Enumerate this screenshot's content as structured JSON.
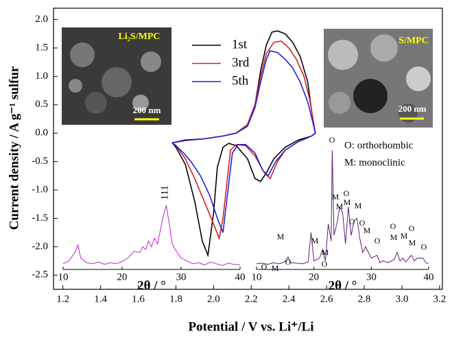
{
  "chart_data": [
    {
      "type": "line",
      "xlabel": "Potential / V vs. Li⁺/Li",
      "ylabel": "Current density / A g⁻¹ sulfur",
      "xlim": [
        1.15,
        3.215
      ],
      "ylim": [
        -2.75,
        2.2
      ],
      "xticks": [
        1.2,
        1.4,
        1.6,
        1.8,
        {
          "value": 2,
          "label": "2.0"
        },
        2.2,
        2.4,
        2.6,
        2.8,
        {
          "value": 3,
          "label": "3.0"
        },
        3.2
      ],
      "yticks": [
        {
          "value": 2,
          "label": "2.0"
        },
        1.5,
        {
          "value": 1,
          "label": "1.0"
        },
        0.5,
        {
          "value": 0,
          "label": "0.0"
        },
        -0.5,
        {
          "value": -1,
          "label": "-1.0"
        },
        -1.5,
        {
          "value": -2,
          "label": "-2.0"
        },
        -2.5
      ],
      "series": [
        {
          "name": "1st",
          "color": "#000000",
          "x": [
            1.78,
            1.85,
            1.95,
            2.05,
            2.12,
            2.18,
            2.22,
            2.25,
            2.28,
            2.31,
            2.34,
            2.38,
            2.42,
            2.46,
            2.5,
            2.52,
            2.54,
            2.52,
            2.45,
            2.38,
            2.32,
            2.28,
            2.25,
            2.22,
            2.18,
            2.12,
            2.08,
            2.05,
            2.02,
            2.0,
            1.97,
            1.94,
            1.9,
            1.85,
            1.8,
            1.78
          ],
          "values": [
            -0.17,
            -0.12,
            -0.1,
            -0.05,
            0.0,
            0.15,
            0.5,
            1.1,
            1.55,
            1.78,
            1.8,
            1.75,
            1.6,
            1.35,
            0.9,
            0.4,
            0.0,
            -0.05,
            -0.12,
            -0.25,
            -0.45,
            -0.7,
            -0.85,
            -0.8,
            -0.45,
            -0.22,
            -0.18,
            -0.25,
            -0.6,
            -1.4,
            -2.15,
            -1.9,
            -1.2,
            -0.55,
            -0.25,
            -0.17
          ]
        },
        {
          "name": "3rd",
          "color": "#d42020",
          "x": [
            1.78,
            1.85,
            1.95,
            2.05,
            2.12,
            2.18,
            2.22,
            2.25,
            2.28,
            2.32,
            2.36,
            2.4,
            2.44,
            2.48,
            2.51,
            2.53,
            2.54,
            2.52,
            2.45,
            2.38,
            2.34,
            2.3,
            2.27,
            2.22,
            2.17,
            2.12,
            2.09,
            2.07,
            2.05,
            2.03,
            2.0,
            1.95,
            1.9,
            1.85,
            1.8,
            1.78
          ],
          "values": [
            -0.17,
            -0.13,
            -0.1,
            -0.05,
            0.0,
            0.15,
            0.5,
            1.0,
            1.4,
            1.6,
            1.62,
            1.5,
            1.3,
            1.0,
            0.6,
            0.2,
            0.0,
            -0.05,
            -0.15,
            -0.3,
            -0.5,
            -0.8,
            -0.7,
            -0.4,
            -0.22,
            -0.2,
            -0.3,
            -0.9,
            -1.5,
            -1.85,
            -1.6,
            -1.2,
            -0.8,
            -0.45,
            -0.22,
            -0.17
          ]
        },
        {
          "name": "5th",
          "color": "#2020d8",
          "x": [
            1.78,
            1.85,
            1.95,
            2.05,
            2.12,
            2.18,
            2.22,
            2.25,
            2.28,
            2.3,
            2.34,
            2.38,
            2.42,
            2.46,
            2.5,
            2.53,
            2.54,
            2.52,
            2.45,
            2.38,
            2.33,
            2.29,
            2.26,
            2.22,
            2.17,
            2.13,
            2.1,
            2.08,
            2.05,
            2.02,
            1.98,
            1.93,
            1.88,
            1.84,
            1.8,
            1.78
          ],
          "values": [
            -0.17,
            -0.13,
            -0.1,
            -0.05,
            0.0,
            0.12,
            0.45,
            0.9,
            1.3,
            1.45,
            1.42,
            1.3,
            1.15,
            0.9,
            0.55,
            0.15,
            0.0,
            -0.05,
            -0.15,
            -0.3,
            -0.5,
            -0.75,
            -0.65,
            -0.35,
            -0.2,
            -0.2,
            -0.35,
            -0.9,
            -1.75,
            -1.5,
            -1.1,
            -0.75,
            -0.5,
            -0.35,
            -0.22,
            -0.17
          ]
        }
      ],
      "legend": "upper center",
      "annotations": [
        "O: orthorhombic",
        "M: monoclinic"
      ],
      "images": [
        {
          "label": "Li₂S/MPC",
          "scale": "200 nm"
        },
        {
          "label": "S/MPC",
          "scale": "200 nm"
        }
      ]
    },
    {
      "type": "line",
      "xlabel": "2θ / °",
      "xlim": [
        10,
        40
      ],
      "xticks": [
        10,
        20,
        30,
        40
      ],
      "color": "#c020d8",
      "x": [
        10,
        11,
        12,
        12.5,
        13,
        14,
        15,
        16,
        17,
        18,
        19,
        20,
        21,
        22,
        23,
        23.5,
        24,
        24.5,
        25,
        25.5,
        26,
        26.5,
        27,
        27.5,
        28,
        28.5,
        29,
        30,
        31,
        32,
        33,
        34,
        35,
        36,
        37,
        38,
        39,
        40
      ],
      "values": [
        -2.3,
        -2.25,
        -2.1,
        -1.97,
        -2.2,
        -2.28,
        -2.3,
        -2.27,
        -2.31,
        -2.28,
        -2.3,
        -2.26,
        -2.2,
        -2.08,
        -2.1,
        -2.0,
        -2.05,
        -1.9,
        -2.0,
        -1.85,
        -1.95,
        -1.7,
        -1.45,
        -1.27,
        -1.6,
        -1.95,
        -2.05,
        -2.2,
        -2.25,
        -2.3,
        -2.28,
        -2.32,
        -2.27,
        -2.3,
        -2.33,
        -2.29,
        -2.31,
        -2.32
      ],
      "annotations": [
        "111"
      ]
    },
    {
      "type": "line",
      "xlabel": "2θ / °",
      "xlim": [
        10,
        40
      ],
      "xticks": [
        10,
        20,
        30,
        40
      ],
      "color": "#5a1a78",
      "x": [
        10,
        11,
        12,
        13,
        14,
        15,
        15.5,
        16,
        17,
        18,
        19,
        19.5,
        20,
        21,
        21.5,
        22,
        22.5,
        23,
        23.2,
        23.5,
        24,
        24.5,
        25,
        25.5,
        26,
        26.5,
        27,
        27.5,
        28,
        28.5,
        29,
        30,
        31,
        31.5,
        32,
        33,
        34,
        34.5,
        35,
        35.5,
        36,
        37,
        37.5,
        38,
        39,
        39.5,
        40
      ],
      "values": [
        -2.3,
        -2.29,
        -2.31,
        -2.28,
        -2.3,
        -2.26,
        -2.18,
        -2.28,
        -2.29,
        -2.3,
        -2.27,
        -1.75,
        -2.25,
        -2.2,
        -2.05,
        -2.25,
        -1.6,
        -1.9,
        -0.3,
        -1.8,
        -1.6,
        -1.3,
        -1.4,
        -1.95,
        -1.3,
        -1.8,
        -1.55,
        -1.5,
        -1.85,
        -2.1,
        -2.0,
        -2.2,
        -2.15,
        -2.28,
        -2.25,
        -2.28,
        -2.22,
        -2.1,
        -2.25,
        -2.2,
        -2.27,
        -2.15,
        -2.25,
        -2.2,
        -2.2,
        -2.28,
        -2.3
      ],
      "peak_labels": [
        "O",
        "M",
        "M",
        "O",
        "M",
        "O",
        "M",
        "O",
        "M",
        "M",
        "O",
        "M",
        "O",
        "M",
        "O",
        "M",
        "O",
        "O",
        "M",
        "M",
        "O",
        "M",
        "O"
      ]
    }
  ]
}
